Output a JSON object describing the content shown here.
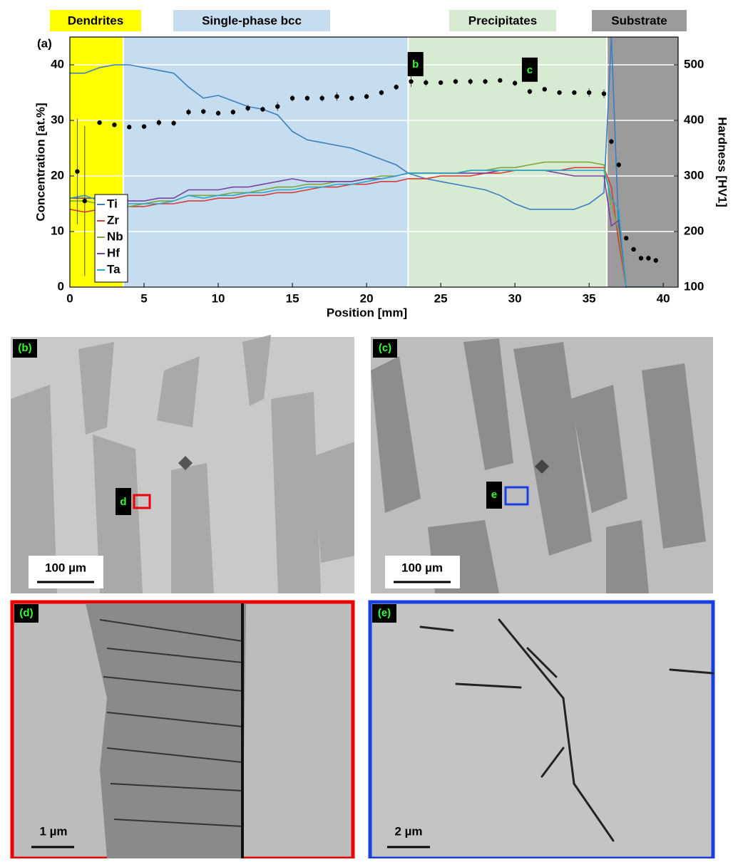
{
  "chart_data": {
    "type": "line",
    "panel_label": "(a)",
    "x_label": "Position [mm]",
    "y_label": "Concentration [at.%]",
    "y2_label": "Hardness [HV1]",
    "xlim": [
      0,
      41
    ],
    "xticks": [
      0,
      5,
      10,
      15,
      20,
      25,
      30,
      35,
      40
    ],
    "ylim": [
      0,
      45
    ],
    "yticks": [
      0,
      10,
      20,
      30,
      40
    ],
    "y2lim": [
      100,
      550
    ],
    "y2ticks": [
      100,
      200,
      300,
      400,
      500
    ],
    "grid": true,
    "legend": "lower left",
    "regions": [
      {
        "name": "Dendrites",
        "start": 0,
        "end": 3.6,
        "color": "#ffff00"
      },
      {
        "name": "Single-phase bcc",
        "start": 3.6,
        "end": 22.8,
        "color": "#c6dcef"
      },
      {
        "name": "Precipitates",
        "start": 22.8,
        "end": 36.2,
        "color": "#d7ebd3"
      },
      {
        "name": "Substrate",
        "start": 36.2,
        "end": 41,
        "color": "#9b9b9b"
      }
    ],
    "annotations": [
      "b",
      "c"
    ],
    "x": [
      0,
      1,
      2,
      3,
      4,
      5,
      6,
      7,
      8,
      9,
      10,
      11,
      12,
      13,
      14,
      15,
      16,
      17,
      18,
      19,
      20,
      21,
      22,
      22.8,
      24,
      25,
      26,
      27,
      28,
      29,
      30,
      31,
      32,
      33,
      34,
      35,
      36,
      36.5,
      37,
      37.5,
      38,
      39,
      40
    ],
    "series": [
      {
        "name": "Ti",
        "color": "#3a7fc0",
        "values": [
          38.5,
          38.5,
          39.5,
          40,
          40,
          39.5,
          39,
          38.5,
          36,
          34,
          34.5,
          33.5,
          32.5,
          32,
          31,
          28,
          26.5,
          26,
          25.5,
          25,
          24,
          23,
          22,
          20.5,
          19.5,
          19,
          18.5,
          18,
          17.5,
          16.5,
          15,
          14,
          14,
          14,
          14,
          15,
          17,
          45,
          10,
          0,
          0,
          0,
          0
        ]
      },
      {
        "name": "Zr",
        "color": "#d93a3a",
        "values": [
          14,
          13.5,
          14,
          14.5,
          14.5,
          14.5,
          15,
          15,
          15.5,
          15.5,
          16,
          16,
          16.5,
          16.5,
          17,
          17,
          17.5,
          18,
          18,
          18.5,
          18.5,
          19,
          19,
          19.5,
          19.5,
          20,
          20,
          20,
          20.5,
          20.5,
          21,
          21,
          21,
          21,
          21.5,
          21.5,
          21.5,
          18,
          8,
          0,
          0,
          0,
          0
        ]
      },
      {
        "name": "Nb",
        "color": "#7aa83a",
        "values": [
          15.5,
          15.5,
          15,
          15,
          14.5,
          15,
          15.5,
          15.5,
          16.5,
          16.5,
          16.5,
          17,
          17,
          17.5,
          18,
          18,
          18.5,
          18.5,
          19,
          19,
          19.5,
          20,
          20,
          20.5,
          20.5,
          20.5,
          20.5,
          21,
          21,
          21.5,
          21.5,
          22,
          22.5,
          22.5,
          22.5,
          22.5,
          22,
          15,
          10,
          0,
          0,
          0,
          0
        ]
      },
      {
        "name": "Hf",
        "color": "#7b3fa0",
        "values": [
          16,
          16,
          16,
          16.5,
          15.5,
          15.5,
          16,
          16,
          17.5,
          17.5,
          17.5,
          18,
          18,
          18.5,
          19,
          19.5,
          19,
          19,
          19,
          19,
          19.5,
          19.5,
          20,
          20.5,
          20.5,
          20.5,
          20.5,
          20.5,
          20.5,
          21,
          21,
          21,
          21,
          20.5,
          20,
          20,
          20,
          11,
          12,
          0,
          0,
          0,
          0
        ]
      },
      {
        "name": "Ta",
        "color": "#2aa8c8",
        "values": [
          16,
          16.5,
          15.5,
          15,
          15,
          15,
          15,
          15.5,
          16.5,
          16,
          16.5,
          16.5,
          17,
          17,
          17.5,
          17.5,
          18,
          18,
          18.5,
          18.5,
          19,
          19.5,
          20,
          20.5,
          20.5,
          20.5,
          20.5,
          21,
          21,
          21,
          21,
          21,
          21,
          21,
          21,
          21,
          21,
          16,
          14,
          0,
          0,
          0,
          0
        ]
      }
    ],
    "hardness": {
      "axis": "y2",
      "color": "#000000",
      "x": [
        0.5,
        1,
        2,
        3,
        4,
        5,
        6,
        7,
        8,
        9,
        10,
        11,
        12,
        13,
        14,
        15,
        16,
        17,
        18,
        19,
        20,
        21,
        22,
        23,
        24,
        25,
        26,
        27,
        28,
        29,
        30,
        31,
        32,
        33,
        34,
        35,
        36,
        36.5,
        37,
        37.5,
        38,
        38.5,
        39,
        39.5
      ],
      "values": [
        308,
        255,
        396,
        392,
        388,
        389,
        396,
        395,
        415,
        416,
        413,
        415,
        422,
        420,
        425,
        440,
        440,
        440,
        443,
        440,
        443,
        450,
        460,
        470,
        468,
        468,
        470,
        470,
        470,
        472,
        467,
        452,
        456,
        450,
        450,
        450,
        448,
        362,
        320,
        188,
        168,
        152,
        152,
        148
      ],
      "errors": [
        95,
        135,
        4,
        4,
        4,
        4,
        6,
        5,
        6,
        5,
        5,
        5,
        6,
        5,
        8,
        6,
        5,
        6,
        8,
        5,
        5,
        5,
        5,
        10,
        6,
        4,
        5,
        6,
        5,
        4,
        5,
        5,
        4,
        4,
        4,
        8,
        8,
        6,
        5,
        4,
        4,
        4,
        5,
        4
      ]
    }
  },
  "panels": [
    {
      "label": "(b)",
      "marker": "d",
      "scale": "100 µm"
    },
    {
      "label": "(c)",
      "marker": "e",
      "scale": "100 µm"
    },
    {
      "label": "(d)",
      "scale": "1 µm"
    },
    {
      "label": "(e)",
      "scale": "2 µm"
    }
  ]
}
